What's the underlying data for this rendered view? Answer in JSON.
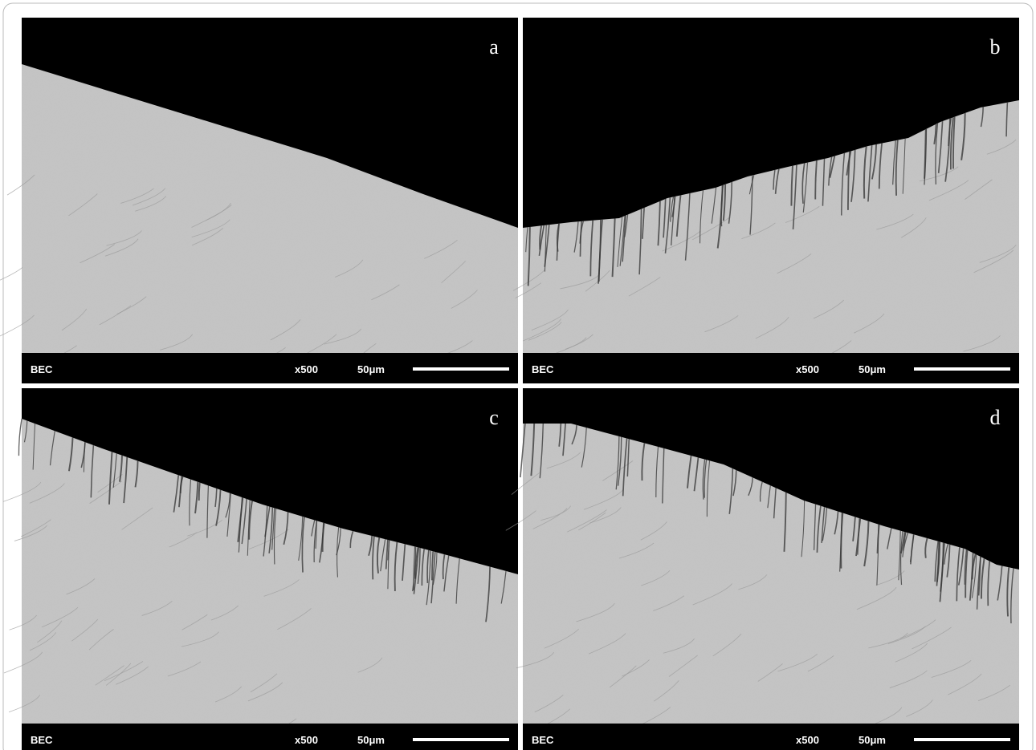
{
  "panels": [
    {
      "label": "a",
      "detector": "BEC",
      "magnification": "x500",
      "scale": "50μm"
    },
    {
      "label": "b",
      "detector": "BEC",
      "magnification": "x500",
      "scale": "50μm"
    },
    {
      "label": "c",
      "detector": "BEC",
      "magnification": "x500",
      "scale": "50μm"
    },
    {
      "label": "d",
      "detector": "BEC",
      "magnification": "x500",
      "scale": "50μm"
    }
  ]
}
